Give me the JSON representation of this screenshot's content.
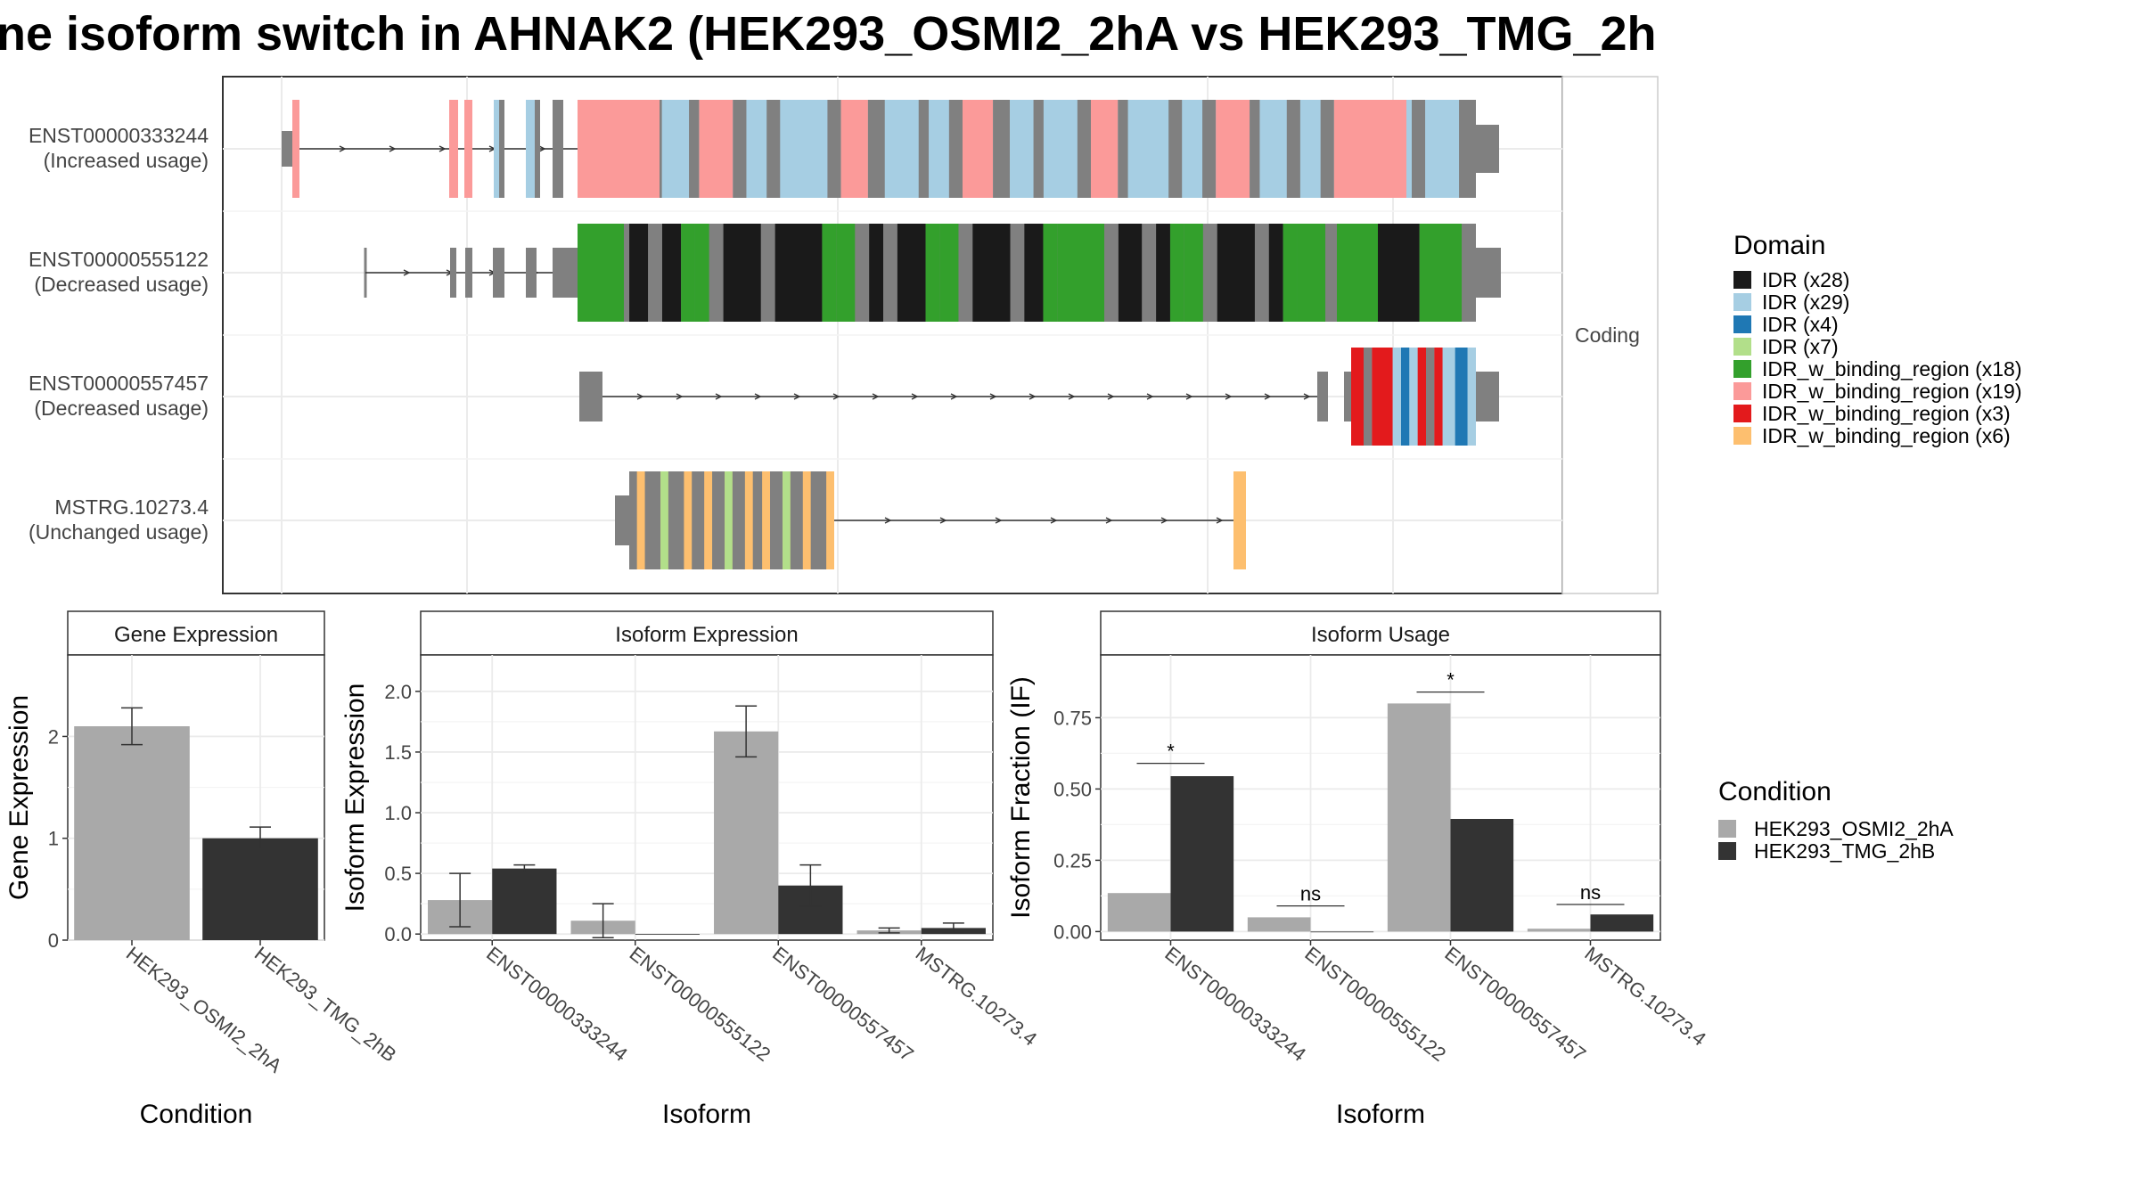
{
  "title": "ne isoform switch in AHNAK2 (HEK293_OSMI2_2hA vs HEK293_TMG_2h",
  "colors": {
    "IDR_x28": "#1a1a1a",
    "IDR_x29": "#a6cee3",
    "IDR_x4": "#1f78b4",
    "IDR_x7": "#b2df8a",
    "IDR_w_binding_region_x18": "#33a02c",
    "IDR_w_binding_region_x19": "#fb9a99",
    "IDR_w_binding_region_x3": "#e31a1c",
    "IDR_w_binding_region_x6": "#fdbf6f",
    "exon_gray": "#808080",
    "cond_a": "#a9a9a9",
    "cond_b": "#333333"
  },
  "chart_data": [
    {
      "type": "isoform_structure",
      "facet_label": "Coding",
      "isoforms": [
        {
          "id": "ENST00000333244",
          "usage": "(Increased usage)"
        },
        {
          "id": "ENST00000555122",
          "usage": "(Decreased usage)"
        },
        {
          "id": "ENST00000557457",
          "usage": "(Decreased usage)"
        },
        {
          "id": "MSTRG.10273.4",
          "usage": "(Unchanged usage)"
        }
      ],
      "legend": {
        "title": "Domain",
        "position": "right",
        "entries": [
          {
            "label": "IDR (x28)",
            "color_key": "IDR_x28"
          },
          {
            "label": "IDR (x29)",
            "color_key": "IDR_x29"
          },
          {
            "label": "IDR (x4)",
            "color_key": "IDR_x4"
          },
          {
            "label": "IDR (x7)",
            "color_key": "IDR_x7"
          },
          {
            "label": "IDR_w_binding_region (x18)",
            "color_key": "IDR_w_binding_region_x18"
          },
          {
            "label": "IDR_w_binding_region (x19)",
            "color_key": "IDR_w_binding_region_x19"
          },
          {
            "label": "IDR_w_binding_region (x3)",
            "color_key": "IDR_w_binding_region_x3"
          },
          {
            "label": "IDR_w_binding_region (x6)",
            "color_key": "IDR_w_binding_region_x6"
          }
        ]
      }
    },
    {
      "type": "bar",
      "strip": "Gene Expression",
      "xlabel": "Condition",
      "ylabel": "Gene Expression",
      "categories": [
        "HEK293_OSMI2_2hA",
        "HEK293_TMG_2hB"
      ],
      "values": [
        2.1,
        1.0
      ],
      "errors": [
        0.18,
        0.11
      ],
      "ylim": [
        0,
        2.8
      ],
      "yticks": [
        "0",
        "1",
        "2"
      ],
      "ytick_values": [
        0,
        1,
        2
      ],
      "grid": true
    },
    {
      "type": "bar",
      "strip": "Isoform Expression",
      "xlabel": "Isoform",
      "ylabel": "Isoform Expression",
      "categories": [
        "ENST00000333244",
        "ENST00000555122",
        "ENST00000557457",
        "MSTRG.10273.4"
      ],
      "series": [
        {
          "name": "HEK293_OSMI2_2hA",
          "values": [
            0.28,
            0.11,
            1.67,
            0.03
          ],
          "errors": [
            0.22,
            0.14,
            0.21,
            0.02
          ]
        },
        {
          "name": "HEK293_TMG_2hB",
          "values": [
            0.54,
            0.0,
            0.4,
            0.05
          ],
          "errors": [
            0.03,
            0.0,
            0.17,
            0.04
          ]
        }
      ],
      "ylim": [
        -0.05,
        2.3
      ],
      "yticks": [
        "0.0",
        "0.5",
        "1.0",
        "1.5",
        "2.0"
      ],
      "ytick_values": [
        0,
        0.5,
        1.0,
        1.5,
        2.0
      ],
      "grid": true
    },
    {
      "type": "bar",
      "strip": "Isoform Usage",
      "xlabel": "Isoform",
      "ylabel": "Isoform Fraction (IF)",
      "categories": [
        "ENST00000333244",
        "ENST00000555122",
        "ENST00000557457",
        "MSTRG.10273.4"
      ],
      "series": [
        {
          "name": "HEK293_OSMI2_2hA",
          "values": [
            0.135,
            0.05,
            0.8,
            0.01
          ]
        },
        {
          "name": "HEK293_TMG_2hB",
          "values": [
            0.545,
            0.0,
            0.395,
            0.06
          ]
        }
      ],
      "significance": [
        "*",
        "ns",
        "*",
        "ns"
      ],
      "significance_y": [
        0.59,
        0.09,
        0.84,
        0.095
      ],
      "ylim": [
        -0.03,
        0.97
      ],
      "yticks": [
        "0.00",
        "0.25",
        "0.50",
        "0.75"
      ],
      "ytick_values": [
        0,
        0.25,
        0.5,
        0.75
      ],
      "grid": true,
      "legend": {
        "title": "Condition",
        "position": "right",
        "entries": [
          "HEK293_OSMI2_2hA",
          "HEK293_TMG_2hB"
        ]
      }
    }
  ]
}
